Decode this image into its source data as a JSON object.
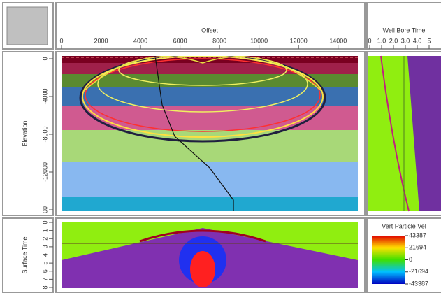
{
  "axes": [
    {
      "label": "Offset",
      "lim": [
        0,
        15000
      ],
      "ticks": [
        0,
        2000,
        4000,
        6000,
        8000,
        10000,
        12000,
        14000
      ]
    },
    {
      "label": "Elevation",
      "lim": [
        0,
        -16000
      ],
      "ticks": [
        0,
        -4000,
        -8000,
        -12000,
        {
          "value": -16000,
          "label": "00"
        }
      ]
    },
    {
      "label": "Well Bore Time",
      "lim": [
        0,
        6
      ],
      "ticks": [
        0,
        {
          "value": 1,
          "label": "1.0"
        },
        {
          "value": 2,
          "label": "2.0"
        },
        {
          "value": 3,
          "label": "3.0"
        },
        {
          "value": 4,
          "label": "4.0"
        },
        5
      ]
    },
    {
      "label": "Surface Time",
      "lim": [
        0,
        8
      ],
      "ticks": [
        0,
        1,
        2,
        3,
        4,
        5,
        6,
        7,
        8
      ]
    }
  ],
  "colorbar": {
    "title": "Vert Particle Vel",
    "lim": [
      -43387,
      43387
    ],
    "ticks": [
      43387,
      21694,
      0,
      -21694,
      -43387
    ]
  }
}
